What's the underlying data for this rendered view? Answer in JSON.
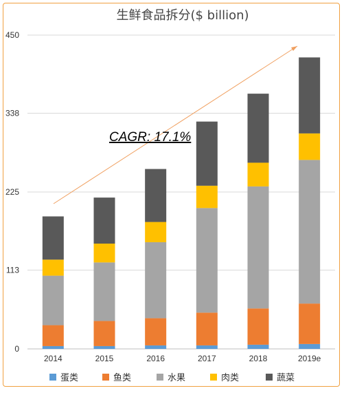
{
  "chart_data": {
    "type": "bar",
    "stacked": true,
    "title": "生鲜食品拆分($ billion)",
    "categories": [
      "2014",
      "2015",
      "2016",
      "2017",
      "2018",
      "2019e"
    ],
    "ylim": [
      0,
      450
    ],
    "yticks": [
      "0",
      "113",
      "225",
      "338",
      "450"
    ],
    "ytick_values": [
      0,
      113,
      225,
      338,
      450
    ],
    "grid": true,
    "legend_position": "bottom",
    "series": [
      {
        "name": "蛋类",
        "color": "#5b9bd5",
        "values": [
          4,
          4,
          5,
          5,
          6,
          7
        ]
      },
      {
        "name": "鱼类",
        "color": "#ed7d31",
        "values": [
          30,
          36,
          39,
          47,
          52,
          58
        ]
      },
      {
        "name": "水果",
        "color": "#a5a5a5",
        "values": [
          71,
          84,
          109,
          150,
          175,
          206
        ]
      },
      {
        "name": "肉类",
        "color": "#ffc000",
        "values": [
          23,
          27,
          29,
          32,
          34,
          38
        ]
      },
      {
        "name": "蔬菜",
        "color": "#595959",
        "values": [
          62,
          66,
          76,
          92,
          99,
          109
        ]
      }
    ],
    "annotation": {
      "text": "CAGR: 17.1%"
    }
  }
}
